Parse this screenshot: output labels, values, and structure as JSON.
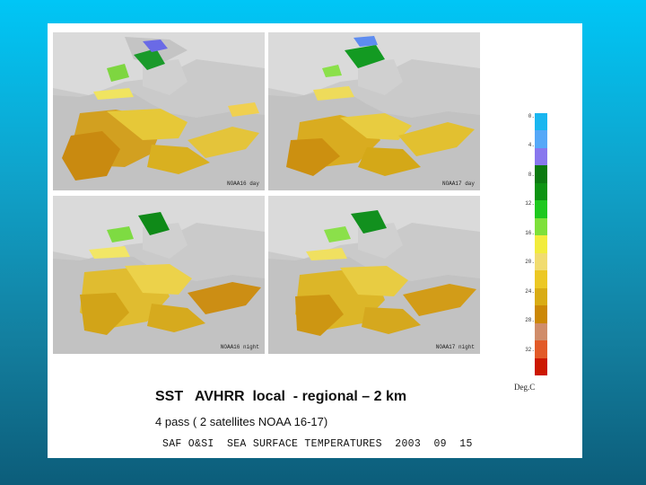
{
  "title": "SST   AVHRR  local  - regional – 2 km",
  "subtitle": "4 pass ( 2 satellites NOAA 16-17)",
  "caption": "SAF O&SI  SEA SURFACE TEMPERATURES  2003  09  15",
  "maps": [
    {
      "pass_label": "NOAA16 day"
    },
    {
      "pass_label": "NOAA17 day"
    },
    {
      "pass_label": "NOAA16 night"
    },
    {
      "pass_label": "NOAA17 night"
    }
  ],
  "legend": {
    "unit": "Deg.C",
    "labels": [
      "0.",
      "4.",
      "8.",
      "12.",
      "16.",
      "20.",
      "24.",
      "28.",
      "32."
    ],
    "colors": [
      "#19b6f0",
      "#55a8f8",
      "#8877ee",
      "#0b7a10",
      "#0d9312",
      "#1ec81e",
      "#7ee03a",
      "#f2ec3c",
      "#f1dc70",
      "#ecc824",
      "#d9ac14",
      "#cc8806",
      "#d08d6a",
      "#e25a28",
      "#cc1800"
    ]
  }
}
